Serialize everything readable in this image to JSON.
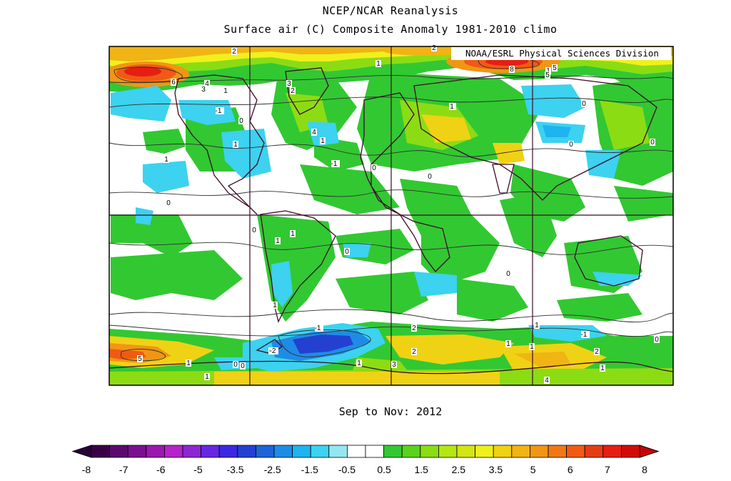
{
  "title": "NCEP/NCAR Reanalysis",
  "subtitle": "Surface air (C) Composite Anomaly 1981-2010 climo",
  "credit": "NOAA/ESRL Physical Sciences Division",
  "period": "Sep to Nov: 2012",
  "colorbar": {
    "ticks": [
      "-8",
      "-7",
      "-6",
      "-5",
      "-3.5",
      "-2.5",
      "-1.5",
      "-0.5",
      "0.5",
      "1.5",
      "2.5",
      "3.5",
      "5",
      "6",
      "7",
      "8"
    ],
    "colors": [
      "#3a0046",
      "#5a0a6e",
      "#7a1090",
      "#9a18b0",
      "#b424c8",
      "#8c28d0",
      "#6428e0",
      "#3c28e0",
      "#2440d0",
      "#1e64d8",
      "#1e8ce6",
      "#1eb4f0",
      "#3cd2f0",
      "#96e6f0",
      "#ffffff",
      "#ffffff",
      "#32c832",
      "#5ad21e",
      "#8cdc14",
      "#b4e614",
      "#d2e614",
      "#f0f01e",
      "#f0d214",
      "#f0b414",
      "#f09614",
      "#f07814",
      "#f05a14",
      "#e63c14",
      "#e61e14",
      "#d20a0a"
    ]
  },
  "contour_labels": [
    "2",
    "2",
    "1",
    "6",
    "4",
    "3",
    "3",
    "1",
    "-1",
    "0",
    "1",
    "2",
    "1",
    "2",
    "5",
    "8",
    "5",
    "4",
    "1",
    "-1",
    "1",
    "0",
    "0",
    "0",
    "0",
    "1",
    "0",
    "1",
    "0",
    "0",
    "1",
    "0",
    "2",
    "-1",
    "0",
    "-2",
    "1",
    "3",
    "2",
    "2",
    "1",
    "1",
    "5",
    "1",
    "1",
    "0",
    "0",
    "-1",
    "1",
    "1",
    "0",
    "2",
    "1",
    "4",
    "0"
  ]
}
